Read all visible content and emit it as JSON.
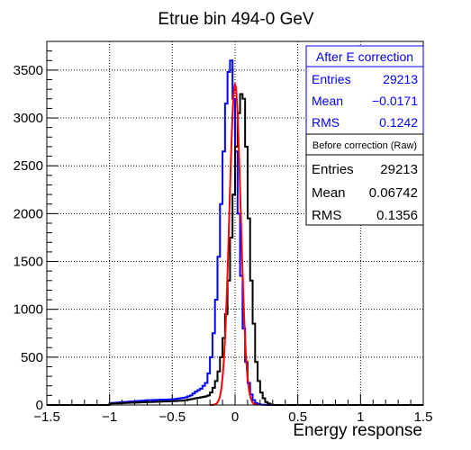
{
  "chart_data": {
    "type": "line",
    "title": "Etrue bin 494-0 GeV",
    "xlabel": "Energy response",
    "ylabel": "",
    "xlim": [
      -1.5,
      1.5
    ],
    "ylim": [
      0,
      3800
    ],
    "xticks": [
      -1.5,
      -1,
      -0.5,
      0,
      0.5,
      1,
      1.5
    ],
    "xtick_labels": [
      "−1.5",
      "−1",
      "−0.5",
      "0",
      "0.5",
      "1",
      "1.5"
    ],
    "yticks": [
      0,
      500,
      1000,
      1500,
      2000,
      2500,
      3000,
      3500
    ],
    "ytick_labels": [
      "0",
      "500",
      "1000",
      "1500",
      "2000",
      "2500",
      "3000",
      "3500"
    ],
    "grid": true,
    "bin_width": 0.02,
    "series": [
      {
        "name": "After E correction",
        "style": "step",
        "color": "#0000ff",
        "bin_low_edges": [
          -1.0,
          -0.9,
          -0.8,
          -0.7,
          -0.6,
          -0.5,
          -0.44,
          -0.4,
          -0.36,
          -0.32,
          -0.28,
          -0.24,
          -0.22,
          -0.2,
          -0.18,
          -0.16,
          -0.14,
          -0.12,
          -0.1,
          -0.08,
          -0.06,
          -0.04,
          -0.02,
          0.0,
          0.02,
          0.04,
          0.06,
          0.08,
          0.1,
          0.12,
          0.14,
          0.16,
          0.18,
          0.2,
          0.22,
          0.24,
          0.26
        ],
        "values": [
          20,
          30,
          40,
          50,
          55,
          60,
          70,
          80,
          100,
          140,
          170,
          230,
          330,
          500,
          750,
          1100,
          1550,
          2100,
          2650,
          3150,
          3480,
          3600,
          3200,
          2650,
          2000,
          1350,
          800,
          450,
          230,
          110,
          50,
          20,
          8,
          4,
          2,
          1,
          0
        ]
      },
      {
        "name": "Before correction (Raw)",
        "style": "step",
        "color": "#000000",
        "bin_low_edges": [
          -1.0,
          -0.9,
          -0.8,
          -0.7,
          -0.6,
          -0.5,
          -0.44,
          -0.4,
          -0.36,
          -0.32,
          -0.28,
          -0.24,
          -0.22,
          -0.2,
          -0.18,
          -0.16,
          -0.14,
          -0.12,
          -0.1,
          -0.08,
          -0.06,
          -0.04,
          -0.02,
          0.0,
          0.02,
          0.04,
          0.06,
          0.08,
          0.1,
          0.12,
          0.14,
          0.16,
          0.18,
          0.2,
          0.22,
          0.24,
          0.26,
          0.28,
          0.3
        ],
        "values": [
          15,
          20,
          25,
          30,
          35,
          40,
          45,
          50,
          60,
          70,
          80,
          90,
          100,
          130,
          180,
          250,
          350,
          500,
          700,
          950,
          1300,
          1750,
          2200,
          2700,
          3050,
          3250,
          3200,
          2700,
          1950,
          1300,
          850,
          450,
          250,
          130,
          70,
          30,
          15,
          5,
          0
        ]
      },
      {
        "name": "Gaussian fit",
        "style": "curve",
        "color": "#ff0000",
        "mean": 0.0,
        "sigma": 0.045,
        "amplitude": 3350,
        "range": [
          -0.2,
          0.18
        ]
      }
    ],
    "stats_after": {
      "header": "After E correction",
      "rows": [
        {
          "label": "Entries",
          "value": "29213"
        },
        {
          "label": "Mean",
          "value": "−0.0171"
        },
        {
          "label": "RMS",
          "value": "0.1242"
        }
      ]
    },
    "stats_before": {
      "header": "Before correction (Raw)",
      "rows": [
        {
          "label": "Entries",
          "value": "29213"
        },
        {
          "label": "Mean",
          "value": "0.06742"
        },
        {
          "label": "RMS",
          "value": "0.1356"
        }
      ]
    }
  }
}
